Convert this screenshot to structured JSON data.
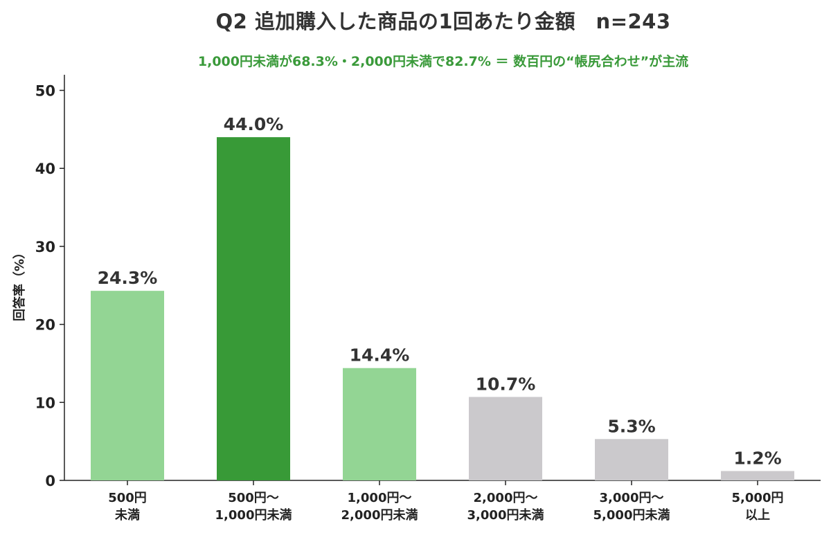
{
  "chart_data": {
    "type": "bar",
    "title": "Q2 追加購入した商品の1回あたり金額　n=243",
    "subtitle": "1,000円未満が68.3%・2,000円未満で82.7% ＝ 数百円の“帳尻合わせ”が主流",
    "xlabel": "",
    "ylabel": "回答率（%）",
    "ylim": [
      0,
      52
    ],
    "yticks": [
      0,
      10,
      20,
      30,
      40,
      50
    ],
    "grid": false,
    "categories": [
      [
        "500円",
        "未満"
      ],
      [
        "500円〜",
        "1,000円未満"
      ],
      [
        "1,000円〜",
        "2,000円未満"
      ],
      [
        "2,000円〜",
        "3,000円未満"
      ],
      [
        "3,000円〜",
        "5,000円未満"
      ],
      [
        "5,000円",
        "以上"
      ]
    ],
    "values": [
      24.3,
      44.0,
      14.4,
      10.7,
      5.3,
      1.2
    ],
    "value_labels": [
      "24.3%",
      "44.0%",
      "14.4%",
      "10.7%",
      "5.3%",
      "1.2%"
    ],
    "bar_colors": [
      "#93d594",
      "#389a37",
      "#93d594",
      "#cbc9cc",
      "#cbc9cc",
      "#cbc9cc"
    ]
  }
}
